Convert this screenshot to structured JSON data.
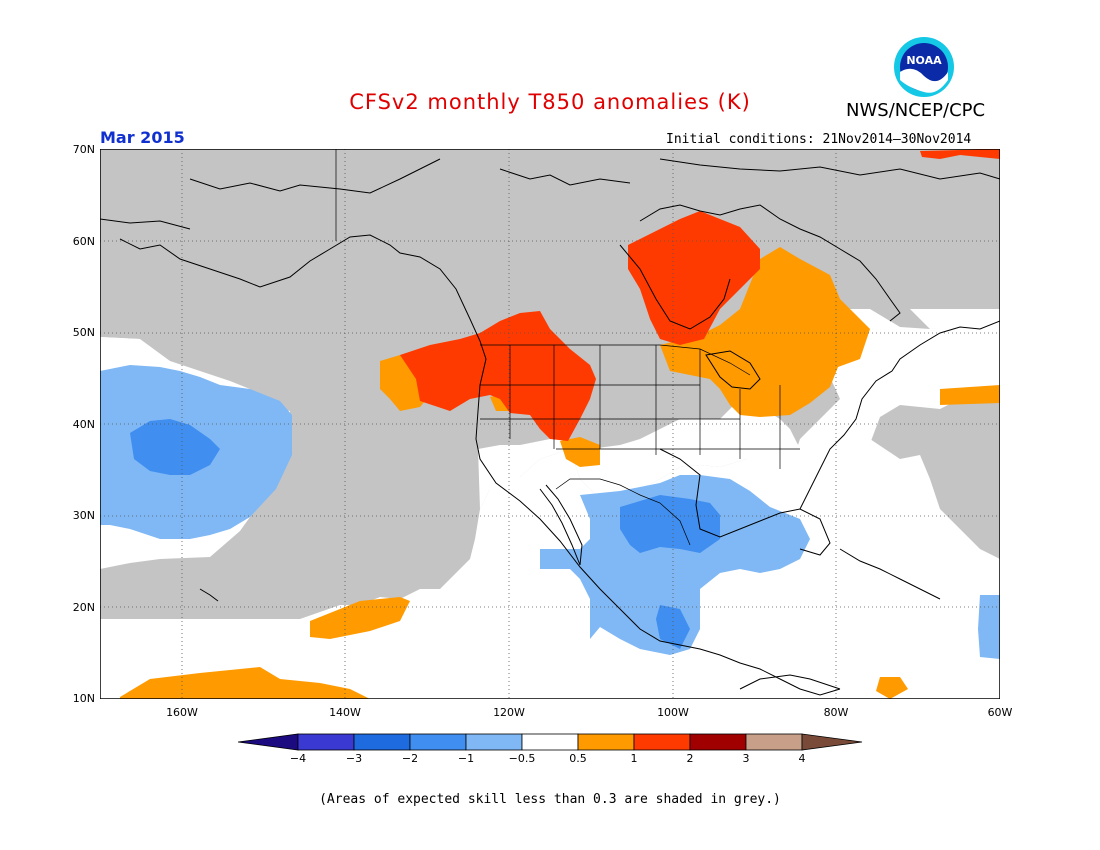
{
  "title": "CFSv2 monthly T850 anomalies (K)",
  "agency": "NWS/NCEP/CPC",
  "logo_text": "NOAA",
  "month": "Mar 2015",
  "initial_conditions": "Initial conditions: 21Nov2014–30Nov2014",
  "lat_labels": [
    "70N",
    "60N",
    "50N",
    "40N",
    "30N",
    "20N",
    "10N"
  ],
  "lon_labels": [
    "160W",
    "140W",
    "120W",
    "100W",
    "80W",
    "60W"
  ],
  "colorbar": {
    "labels": [
      "−4",
      "−3",
      "−2",
      "−1",
      "−0.5",
      "0.5",
      "1",
      "2",
      "3",
      "4"
    ],
    "colors": [
      "#1c0a80",
      "#3a3ad2",
      "#1e6be0",
      "#3f8ef0",
      "#7fb8f5",
      "#ffffff",
      "#ff9a00",
      "#ff3a00",
      "#a00000",
      "#c8a08a",
      "#7a4a38"
    ]
  },
  "colors": {
    "skill_grey": "#c4c4c4",
    "cold_strong": "#3f8ef0",
    "cold_weak": "#7fb8f5",
    "warm_weak": "#ff9a00",
    "warm_mid": "#ff3a00",
    "title_red": "#e00000",
    "month_blue": "#1030d0"
  },
  "footnote": "(Areas of expected skill less than 0.3 are shaded in grey.)"
}
